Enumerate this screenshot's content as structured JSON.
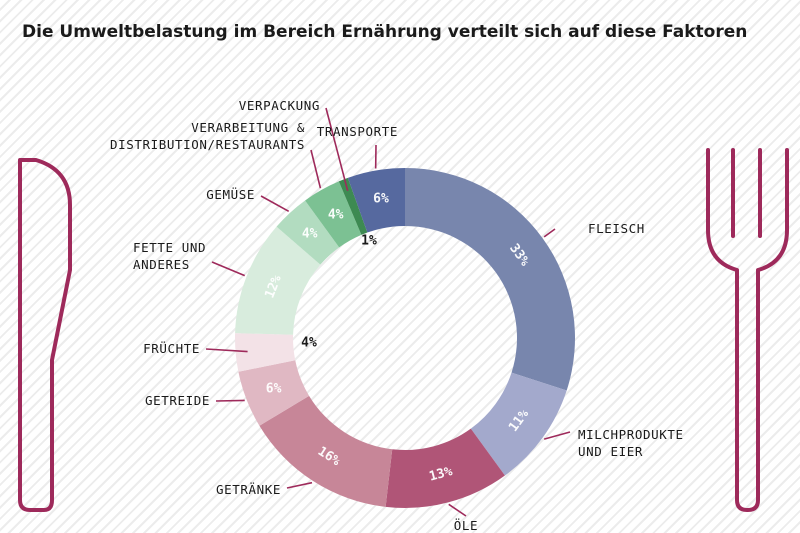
{
  "title": "Die Umweltbelastung im Bereich Ernährung verteilt sich auf diese Faktoren",
  "chart_data": {
    "type": "pie",
    "variant": "donut",
    "title": "Die Umweltbelastung im Bereich Ernährung verteilt sich auf diese Faktoren",
    "slices": [
      {
        "label": "FLEISCH",
        "value": 33,
        "display": "33%",
        "color": "#7886ad"
      },
      {
        "label": "MILCHPRODUKTE UND EIER",
        "value": 11,
        "display": "11%",
        "color": "#a3a9cc"
      },
      {
        "label": "ÖLE",
        "value": 13,
        "display": "13%",
        "color": "#b05577"
      },
      {
        "label": "GETRÄNKE",
        "value": 16,
        "display": "16%",
        "color": "#c78698"
      },
      {
        "label": "GETREIDE",
        "value": 6,
        "display": "6%",
        "color": "#e0b8c3"
      },
      {
        "label": "FRÜCHTE",
        "value": 4,
        "display": "4%",
        "color": "#f3e2e7"
      },
      {
        "label": "FETTE UND ANDERES",
        "value": 12,
        "display": "12%",
        "color": "#d8ecdd"
      },
      {
        "label": "GEMÜSE",
        "value": 4,
        "display": "4%",
        "color": "#b2dcc0"
      },
      {
        "label": "VERARBEITUNG & DISTRIBUTION/RESTAURANTS",
        "value": 4,
        "display": "4%",
        "color": "#7cc193"
      },
      {
        "label": "VERPACKUNG",
        "value": 1,
        "display": "1%",
        "color": "#3d8a52"
      },
      {
        "label": "TRANSPORTE",
        "value": 6,
        "display": "6%",
        "color": "#56699f"
      }
    ],
    "accent_color": "#9e2a5b"
  }
}
